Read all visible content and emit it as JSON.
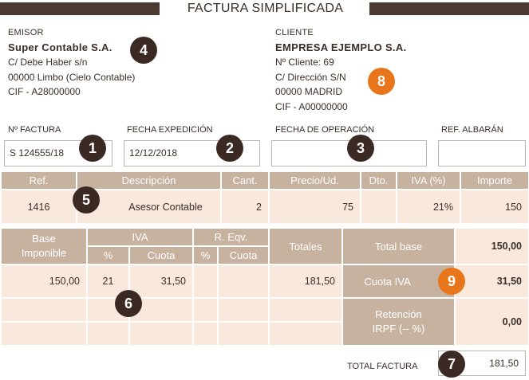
{
  "title": "FACTURA SIMPLIFICADA",
  "emisor": {
    "label": "EMISOR",
    "name": "Super Contable S.A.",
    "address": "C/ Debe Haber s/n",
    "city": "00000 Limbo (Cielo Contable)",
    "cif": "CIF - A28000000"
  },
  "cliente": {
    "label": "CLIENTE",
    "name": "EMPRESA EJEMPLO S.A.",
    "number": "Nº Cliente: 69",
    "address": "C/ Dirección S/N",
    "city": "00000 MADRID",
    "cif": "CIF - A00000000"
  },
  "fields": {
    "factura_label": "Nº FACTURA",
    "factura_value": "S 124555/18",
    "expedicion_label": "FECHA EXPEDICIÓN",
    "expedicion_value": "12/12/2018",
    "operacion_label": "FECHA DE OPERACIÓN",
    "operacion_value": "",
    "albaran_label": "REF. ALBARÁN",
    "albaran_value": ""
  },
  "items_table": {
    "headers": [
      "Ref.",
      "Descripción",
      "Cant.",
      "Precio/Ud.",
      "Dto.",
      "IVA (%)",
      "Importe"
    ],
    "row": [
      "1416",
      "Asesor Contable",
      "2",
      "75",
      "",
      "21%",
      "150"
    ]
  },
  "summary": {
    "base_header": "Base\nImponible",
    "iva_header": "IVA",
    "req_header": "R. Eqv.",
    "pct": "%",
    "cuota": "Cuota",
    "totales_header": "Totales",
    "base_value": "150,00",
    "iva_pct": "21",
    "iva_cuota": "31,50",
    "totales_value": "181,50",
    "total_base_label": "Total base",
    "total_base_value": "150,00",
    "cuota_iva_label": "Cuota IVA",
    "cuota_iva_value": "31,50",
    "retencion_label": "Retención\nIRPF (-- %)",
    "retencion_value": "0,00"
  },
  "total": {
    "label": "TOTAL FACTURA",
    "value": "181,50"
  },
  "badges": [
    "1",
    "2",
    "3",
    "4",
    "5",
    "6",
    "7",
    "8",
    "9"
  ],
  "colors": {
    "header_bg": "#c7b29f",
    "row_bg": "#f9e9dc",
    "dark_bar": "#4a3a31",
    "badge_dark": "#3b2a24",
    "badge_orange": "#e8751a"
  }
}
